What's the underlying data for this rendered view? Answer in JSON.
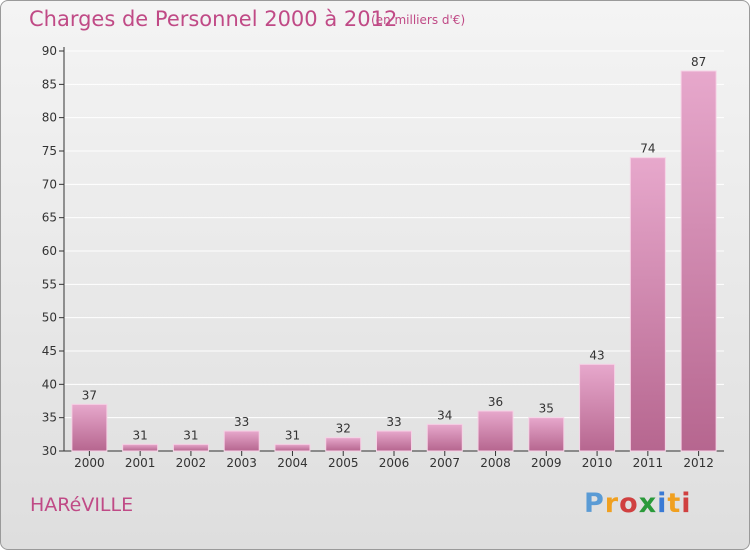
{
  "header": {
    "title": "Charges de Personnel 2000 à 2012",
    "subtitle": "(en milliers d'€)"
  },
  "footer": {
    "commune": "HARéVILLE",
    "logo_text": [
      "P",
      "r",
      "o",
      "x",
      "i",
      "t",
      "i"
    ],
    "logo_colors": [
      "#5a9bd5",
      "#f0a020",
      "#d04040",
      "#2a9a3a",
      "#3a7ad5",
      "#f0a020",
      "#d04040"
    ]
  },
  "colors": {
    "bar_top": "#e7a8cc",
    "bar_bottom": "#b6668f",
    "axis": "#333333",
    "grid": "#ffffff",
    "title": "#c04a86"
  },
  "chart_data": {
    "type": "bar",
    "categories": [
      "2000",
      "2001",
      "2002",
      "2003",
      "2004",
      "2005",
      "2006",
      "2007",
      "2008",
      "2009",
      "2010",
      "2011",
      "2012"
    ],
    "values": [
      37,
      31,
      31,
      33,
      31,
      32,
      33,
      34,
      36,
      35,
      43,
      74,
      87
    ],
    "ylim": [
      30,
      90
    ],
    "yticks": [
      30,
      35,
      40,
      45,
      50,
      55,
      60,
      65,
      70,
      75,
      80,
      85,
      90
    ],
    "grid": true,
    "data_labels": true
  }
}
